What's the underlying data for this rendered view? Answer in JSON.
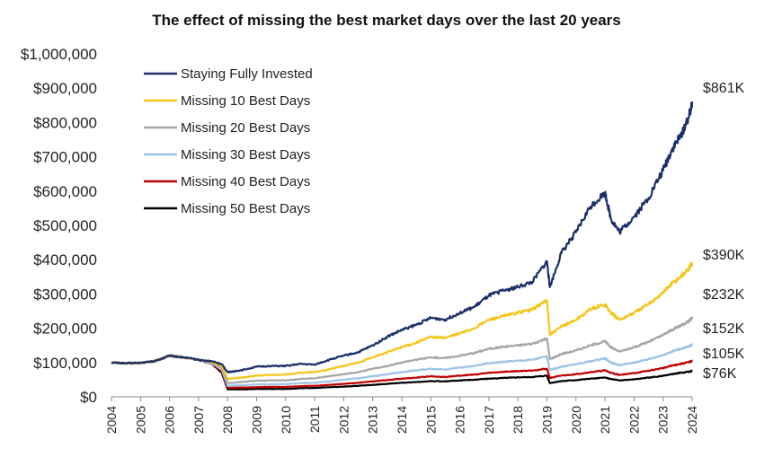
{
  "chart_data": {
    "type": "line",
    "title": "The effect of missing the best market days over the last 20 years",
    "xlabel": "",
    "ylabel": "",
    "xlim": [
      2004,
      2024
    ],
    "ylim": [
      0,
      1000000
    ],
    "grid": false,
    "legend_position": "top-left",
    "y_ticks": [
      {
        "value": 0,
        "label": "$0"
      },
      {
        "value": 100000,
        "label": "$100,000"
      },
      {
        "value": 200000,
        "label": "$200,000"
      },
      {
        "value": 300000,
        "label": "$300,000"
      },
      {
        "value": 400000,
        "label": "$400,000"
      },
      {
        "value": 500000,
        "label": "$500,000"
      },
      {
        "value": 600000,
        "label": "$600,000"
      },
      {
        "value": 700000,
        "label": "$700,000"
      },
      {
        "value": 800000,
        "label": "$800,000"
      },
      {
        "value": 900000,
        "label": "$900,000"
      },
      {
        "value": 1000000,
        "label": "$1,000,000"
      }
    ],
    "x_ticks": [
      "2004",
      "2005",
      "2006",
      "2007",
      "2008",
      "2009",
      "2010",
      "2011",
      "2012",
      "2013",
      "2014",
      "2015",
      "2016",
      "2017",
      "2018",
      "2019",
      "2020",
      "2021",
      "2022",
      "2023",
      "2024"
    ],
    "series": [
      {
        "name": "Staying Fully Invested",
        "color": "#1b2f6b",
        "end_label": "$861K",
        "x": [
          2004,
          2004.5,
          2005,
          2005.5,
          2006,
          2006.5,
          2007,
          2007.5,
          2007.8,
          2008,
          2008.3,
          2008.6,
          2009,
          2009.5,
          2010,
          2010.5,
          2011,
          2011.5,
          2012,
          2012.5,
          2013,
          2013.5,
          2014,
          2014.5,
          2015,
          2015.5,
          2016,
          2016.5,
          2017,
          2017.5,
          2018,
          2018.5,
          2019,
          2019.1,
          2019.5,
          2020,
          2020.5,
          2021,
          2021.2,
          2021.5,
          2022,
          2022.5,
          2023,
          2023.3,
          2023.6,
          2023.9,
          2024
        ],
        "y": [
          100000,
          98000,
          99000,
          104000,
          120000,
          115000,
          108000,
          103000,
          95000,
          72000,
          75000,
          80000,
          88000,
          90000,
          90000,
          96000,
          94000,
          108000,
          120000,
          130000,
          150000,
          175000,
          195000,
          210000,
          230000,
          225000,
          245000,
          262000,
          295000,
          310000,
          320000,
          335000,
          395000,
          320000,
          420000,
          480000,
          555000,
          595000,
          520000,
          480000,
          525000,
          580000,
          660000,
          720000,
          760000,
          820000,
          861000
        ]
      },
      {
        "name": "Missing 10 Best Days",
        "color": "#f5c518",
        "end_label": "$390K",
        "x": [
          2004,
          2004.5,
          2005,
          2005.5,
          2006,
          2006.5,
          2007,
          2007.5,
          2007.8,
          2008,
          2008.3,
          2008.6,
          2009,
          2009.5,
          2010,
          2010.5,
          2011,
          2011.5,
          2012,
          2012.5,
          2013,
          2013.5,
          2014,
          2014.5,
          2015,
          2015.5,
          2016,
          2016.5,
          2017,
          2017.5,
          2018,
          2018.5,
          2019,
          2019.1,
          2019.5,
          2020,
          2020.5,
          2021,
          2021.2,
          2021.5,
          2022,
          2022.5,
          2023,
          2023.3,
          2023.6,
          2023.9,
          2024
        ],
        "y": [
          100000,
          98000,
          99000,
          104000,
          120000,
          115000,
          108000,
          100000,
          90000,
          52000,
          55000,
          57000,
          62000,
          64000,
          65000,
          70000,
          72000,
          80000,
          90000,
          100000,
          115000,
          130000,
          145000,
          158000,
          175000,
          172000,
          185000,
          200000,
          225000,
          235000,
          245000,
          255000,
          282000,
          180000,
          205000,
          225000,
          255000,
          270000,
          245000,
          225000,
          245000,
          270000,
          305000,
          330000,
          350000,
          375000,
          390000
        ]
      },
      {
        "name": "Missing 20 Best Days",
        "color": "#a6a6a6",
        "end_label": "$232K",
        "x": [
          2004,
          2004.5,
          2005,
          2005.5,
          2006,
          2006.5,
          2007,
          2007.5,
          2007.8,
          2008,
          2008.3,
          2008.6,
          2009,
          2009.5,
          2010,
          2010.5,
          2011,
          2011.5,
          2012,
          2012.5,
          2013,
          2013.5,
          2014,
          2014.5,
          2015,
          2015.5,
          2016,
          2016.5,
          2017,
          2017.5,
          2018,
          2018.5,
          2019,
          2019.1,
          2019.5,
          2020,
          2020.5,
          2021,
          2021.2,
          2021.5,
          2022,
          2022.5,
          2023,
          2023.3,
          2023.6,
          2023.9,
          2024
        ],
        "y": [
          100000,
          98000,
          99000,
          104000,
          120000,
          115000,
          108000,
          98000,
          85000,
          40000,
          42000,
          44000,
          47000,
          48000,
          48000,
          52000,
          54000,
          60000,
          66000,
          72000,
          82000,
          90000,
          100000,
          108000,
          115000,
          113000,
          120000,
          128000,
          140000,
          146000,
          150000,
          155000,
          170000,
          110000,
          125000,
          135000,
          150000,
          162000,
          145000,
          132000,
          145000,
          160000,
          180000,
          195000,
          208000,
          222000,
          232000
        ]
      },
      {
        "name": "Missing 30 Best Days",
        "color": "#9dc3e6",
        "end_label": "$152K",
        "x": [
          2004,
          2004.5,
          2005,
          2005.5,
          2006,
          2006.5,
          2007,
          2007.5,
          2007.8,
          2008,
          2008.3,
          2008.6,
          2009,
          2009.5,
          2010,
          2010.5,
          2011,
          2011.5,
          2012,
          2012.5,
          2013,
          2013.5,
          2014,
          2014.5,
          2015,
          2015.5,
          2016,
          2016.5,
          2017,
          2017.5,
          2018,
          2018.5,
          2019,
          2019.1,
          2019.5,
          2020,
          2020.5,
          2021,
          2021.2,
          2021.5,
          2022,
          2022.5,
          2023,
          2023.3,
          2023.6,
          2023.9,
          2024
        ],
        "y": [
          100000,
          98000,
          99000,
          104000,
          120000,
          115000,
          108000,
          96000,
          80000,
          32000,
          33000,
          34000,
          36000,
          37000,
          37000,
          40000,
          41000,
          45000,
          50000,
          54000,
          60000,
          66000,
          72000,
          77000,
          82000,
          80000,
          85000,
          90000,
          98000,
          102000,
          105000,
          108000,
          118000,
          78000,
          88000,
          95000,
          104000,
          112000,
          100000,
          92000,
          100000,
          110000,
          122000,
          132000,
          140000,
          147000,
          152000
        ]
      },
      {
        "name": "Missing 40 Best Days",
        "color": "#c00000",
        "end_label": "$105K",
        "x": [
          2004,
          2004.5,
          2005,
          2005.5,
          2006,
          2006.5,
          2007,
          2007.5,
          2007.8,
          2008,
          2008.3,
          2008.6,
          2009,
          2009.5,
          2010,
          2010.5,
          2011,
          2011.5,
          2012,
          2012.5,
          2013,
          2013.5,
          2014,
          2014.5,
          2015,
          2015.5,
          2016,
          2016.5,
          2017,
          2017.5,
          2018,
          2018.5,
          2019,
          2019.1,
          2019.5,
          2020,
          2020.5,
          2021,
          2021.2,
          2021.5,
          2022,
          2022.5,
          2023,
          2023.3,
          2023.6,
          2023.9,
          2024
        ],
        "y": [
          100000,
          98000,
          99000,
          104000,
          120000,
          115000,
          108000,
          95000,
          75000,
          26000,
          27000,
          27000,
          28000,
          29000,
          29000,
          31000,
          32000,
          35000,
          38000,
          41000,
          45000,
          49000,
          53000,
          56000,
          60000,
          58000,
          62000,
          65000,
          70000,
          73000,
          75000,
          77000,
          82000,
          55000,
          62000,
          66000,
          72000,
          77000,
          70000,
          64000,
          69000,
          76000,
          84000,
          91000,
          96000,
          101000,
          105000
        ]
      },
      {
        "name": "Missing 50 Best Days",
        "color": "#000000",
        "end_label": "$76K",
        "x": [
          2004,
          2004.5,
          2005,
          2005.5,
          2006,
          2006.5,
          2007,
          2007.5,
          2007.8,
          2008,
          2008.3,
          2008.6,
          2009,
          2009.5,
          2010,
          2010.5,
          2011,
          2011.5,
          2012,
          2012.5,
          2013,
          2013.5,
          2014,
          2014.5,
          2015,
          2015.5,
          2016,
          2016.5,
          2017,
          2017.5,
          2018,
          2018.5,
          2019,
          2019.1,
          2019.5,
          2020,
          2020.5,
          2021,
          2021.2,
          2021.5,
          2022,
          2022.5,
          2023,
          2023.3,
          2023.6,
          2023.9,
          2024
        ],
        "y": [
          100000,
          98000,
          99000,
          104000,
          120000,
          115000,
          108000,
          94000,
          70000,
          22000,
          22000,
          22000,
          23000,
          23000,
          23000,
          25000,
          26000,
          28000,
          30000,
          32000,
          35000,
          38000,
          41000,
          43000,
          46000,
          45000,
          48000,
          50000,
          53000,
          55000,
          57000,
          58000,
          62000,
          40000,
          46000,
          49000,
          53000,
          56000,
          52000,
          48000,
          51000,
          56000,
          61000,
          66000,
          70000,
          73000,
          76000
        ]
      }
    ]
  }
}
